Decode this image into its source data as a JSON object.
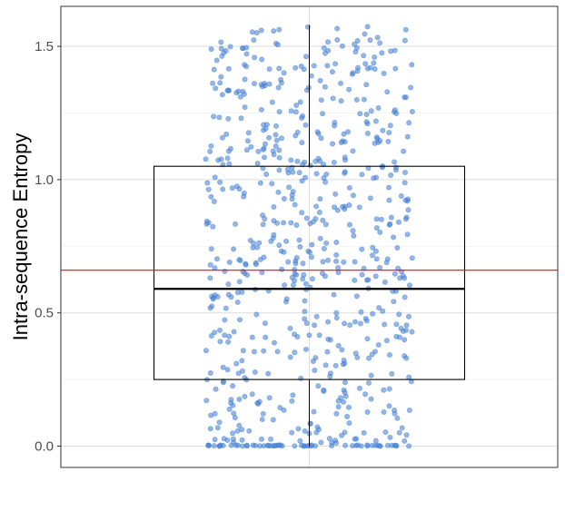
{
  "chart_data": {
    "type": "scatter",
    "subtype": "boxplot-with-jitter",
    "title": "",
    "xlabel": "",
    "ylabel": "Intra-sequence Entropy",
    "ylim": [
      -0.08,
      1.65
    ],
    "yticks": [
      0.0,
      0.5,
      1.0,
      1.5
    ],
    "ytick_labels": [
      "0.0",
      "0.5",
      "1.0",
      "1.5"
    ],
    "grid": true,
    "legend": "none",
    "boxplot": {
      "q1": 0.25,
      "median": 0.59,
      "q3": 1.05,
      "whisker_low": 0.0,
      "whisker_high": 1.58
    },
    "mean_line": 0.66,
    "points": {
      "count": 700,
      "y_min": 0.0,
      "y_max": 1.58,
      "zero_fraction": 0.08
    },
    "colors": {
      "points": "#4a86d9",
      "mean_line": "#ff0000",
      "box": "#000000",
      "grid_major": "#dedede",
      "grid_minor": "#efefef",
      "panel_border": "#333333",
      "background": "#ffffff"
    }
  }
}
